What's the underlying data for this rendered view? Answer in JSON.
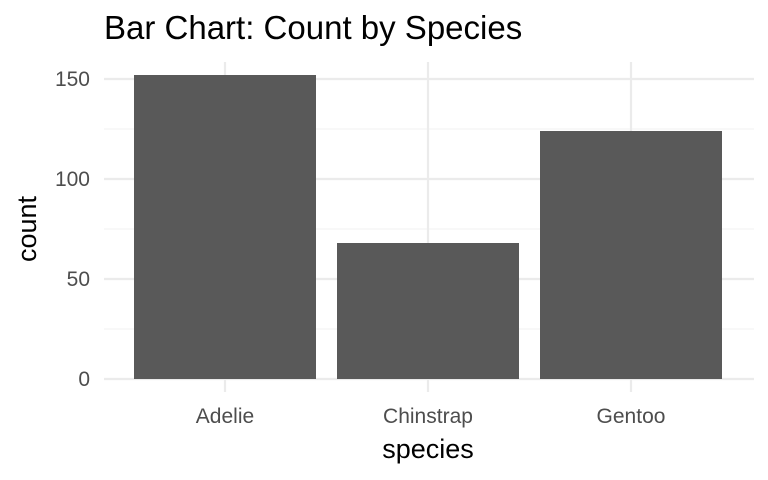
{
  "chart_data": {
    "type": "bar",
    "title": "Bar Chart: Count by Species",
    "xlabel": "species",
    "ylabel": "count",
    "categories": [
      "Adelie",
      "Chinstrap",
      "Gentoo"
    ],
    "values": [
      152,
      68,
      124
    ],
    "ylim": [
      0,
      160
    ],
    "yticks": [
      0,
      50,
      100,
      150
    ],
    "yminor": [
      25,
      75,
      125
    ],
    "grid": true,
    "legend": "none",
    "bar_color": "#595959"
  }
}
